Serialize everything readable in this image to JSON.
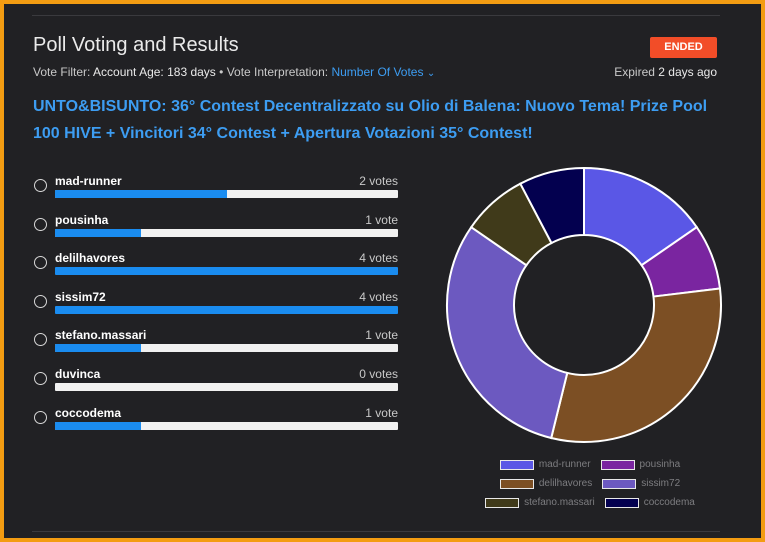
{
  "header": {
    "title": "Poll Voting and Results",
    "status_badge": "ENDED",
    "filter_label": "Vote Filter:",
    "filter_key": "Account Age:",
    "filter_value": "183 days",
    "separator": "•",
    "interpretation_label": "Vote Interpretation:",
    "interpretation_value": "Number Of Votes",
    "expired_prefix": "Expired",
    "expired_value": "2 days ago"
  },
  "question": "UNTO&BISUNTO: 36° Contest Decentralizzato su Olio di Balena: Nuovo Tema! Prize Pool 100 HIVE + Vincitori 34° Contest + Apertura Votazioni 35° Contest!",
  "options": [
    {
      "name": "mad-runner",
      "votes_label": "2 votes",
      "fraction": 0.5
    },
    {
      "name": "pousinha",
      "votes_label": "1 vote",
      "fraction": 0.25
    },
    {
      "name": "delilhavores",
      "votes_label": "4 votes",
      "fraction": 1.0
    },
    {
      "name": "sissim72",
      "votes_label": "4 votes",
      "fraction": 1.0
    },
    {
      "name": "stefano.massari",
      "votes_label": "1 vote",
      "fraction": 0.25
    },
    {
      "name": "duvinca",
      "votes_label": "0 votes",
      "fraction": 0.0
    },
    {
      "name": "coccodema",
      "votes_label": "1 vote",
      "fraction": 0.25
    }
  ],
  "chart_data": {
    "type": "pie",
    "categories": [
      "mad-runner",
      "pousinha",
      "delilhavores",
      "sissim72",
      "stefano.massari",
      "coccodema"
    ],
    "values": [
      2,
      1,
      4,
      4,
      1,
      1
    ],
    "colors": [
      "#5a57e6",
      "#7a25a0",
      "#7c4f24",
      "#6c59c0",
      "#403a1a",
      "#03004f"
    ],
    "legend_position": "bottom"
  },
  "legend": {
    "rows": [
      [
        "mad-runner",
        "pousinha"
      ],
      [
        "delilhavores",
        "sissim72"
      ],
      [
        "stefano.massari",
        "coccodema"
      ]
    ]
  }
}
